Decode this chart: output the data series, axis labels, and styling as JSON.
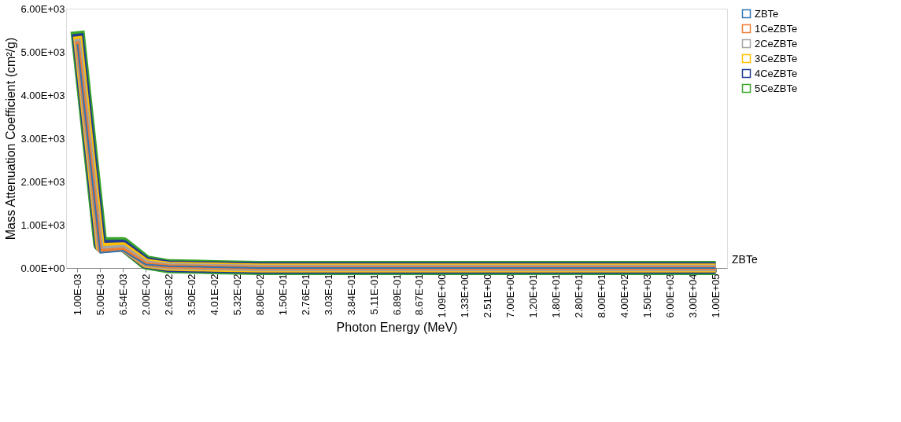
{
  "chart_data": {
    "type": "line",
    "xlabel": "Photon Energy (MeV)",
    "ylabel": "Mass Attenuation Coefficient (cm²/g)",
    "categories": [
      "1.00E-03",
      "5.00E-03",
      "6.54E-03",
      "2.00E-02",
      "2.63E-02",
      "3.50E-02",
      "4.01E-02",
      "5.32E-02",
      "8.80E-02",
      "1.50E-01",
      "2.76E-01",
      "3.03E-01",
      "3.84E-01",
      "5.11E-01",
      "6.89E-01",
      "8.67E-01",
      "1.09E+00",
      "1.33E+00",
      "2.51E+00",
      "7.00E+00",
      "1.20E+01",
      "1.80E+01",
      "2.80E+01",
      "8.00E+01",
      "4.00E+02",
      "1.50E+03",
      "6.00E+03",
      "3.00E+04",
      "1.00E+05"
    ],
    "series": [
      {
        "name": "ZBTe",
        "color": "#2e75b6",
        "values": [
          5180,
          350,
          400,
          80,
          40,
          30,
          20,
          10,
          0,
          0,
          0,
          0,
          0,
          0,
          0,
          0,
          0,
          0,
          0,
          0,
          0,
          0,
          0,
          0,
          0,
          0,
          0,
          0,
          0
        ]
      },
      {
        "name": "1CeZBTe",
        "color": "#ed7d31",
        "values": [
          5240,
          390,
          430,
          90,
          40,
          30,
          20,
          10,
          0,
          0,
          0,
          0,
          0,
          0,
          0,
          0,
          0,
          0,
          0,
          0,
          0,
          0,
          0,
          0,
          0,
          0,
          0,
          0,
          0
        ]
      },
      {
        "name": "2CeZBTe",
        "color": "#a5a5a5",
        "values": [
          5300,
          430,
          460,
          100,
          40,
          30,
          20,
          10,
          0,
          0,
          0,
          0,
          0,
          0,
          0,
          0,
          0,
          0,
          0,
          0,
          0,
          0,
          0,
          0,
          0,
          0,
          0,
          0,
          0
        ]
      },
      {
        "name": "3CeZBTe",
        "color": "#ffc000",
        "values": [
          5360,
          470,
          490,
          110,
          40,
          30,
          20,
          10,
          0,
          0,
          0,
          0,
          0,
          0,
          0,
          0,
          0,
          0,
          0,
          0,
          0,
          0,
          0,
          0,
          0,
          0,
          0,
          0,
          0
        ]
      },
      {
        "name": "4CeZBTe",
        "color": "#1f3a93",
        "values": [
          5420,
          510,
          520,
          120,
          40,
          30,
          20,
          10,
          0,
          0,
          0,
          0,
          0,
          0,
          0,
          0,
          0,
          0,
          0,
          0,
          0,
          0,
          0,
          0,
          0,
          0,
          0,
          0,
          0
        ]
      },
      {
        "name": "5CeZBTe",
        "color": "#3aa62a",
        "values": [
          5480,
          550,
          550,
          130,
          40,
          30,
          20,
          10,
          0,
          0,
          0,
          0,
          0,
          0,
          0,
          0,
          0,
          0,
          0,
          0,
          0,
          0,
          0,
          0,
          0,
          0,
          0,
          0,
          0
        ]
      }
    ],
    "ylim": [
      0,
      6000
    ],
    "yticks": [
      {
        "value": 0,
        "label": "0.00E+00"
      },
      {
        "value": 1000,
        "label": "1.00E+03"
      },
      {
        "value": 2000,
        "label": "2.00E+03"
      },
      {
        "value": 3000,
        "label": "3.00E+03"
      },
      {
        "value": 4000,
        "label": "4.00E+03"
      },
      {
        "value": 5000,
        "label": "5.00E+03"
      },
      {
        "value": 6000,
        "label": "6.00E+03"
      }
    ],
    "annotations": [
      "ZBTe"
    ],
    "grid": false,
    "legend": "right"
  }
}
